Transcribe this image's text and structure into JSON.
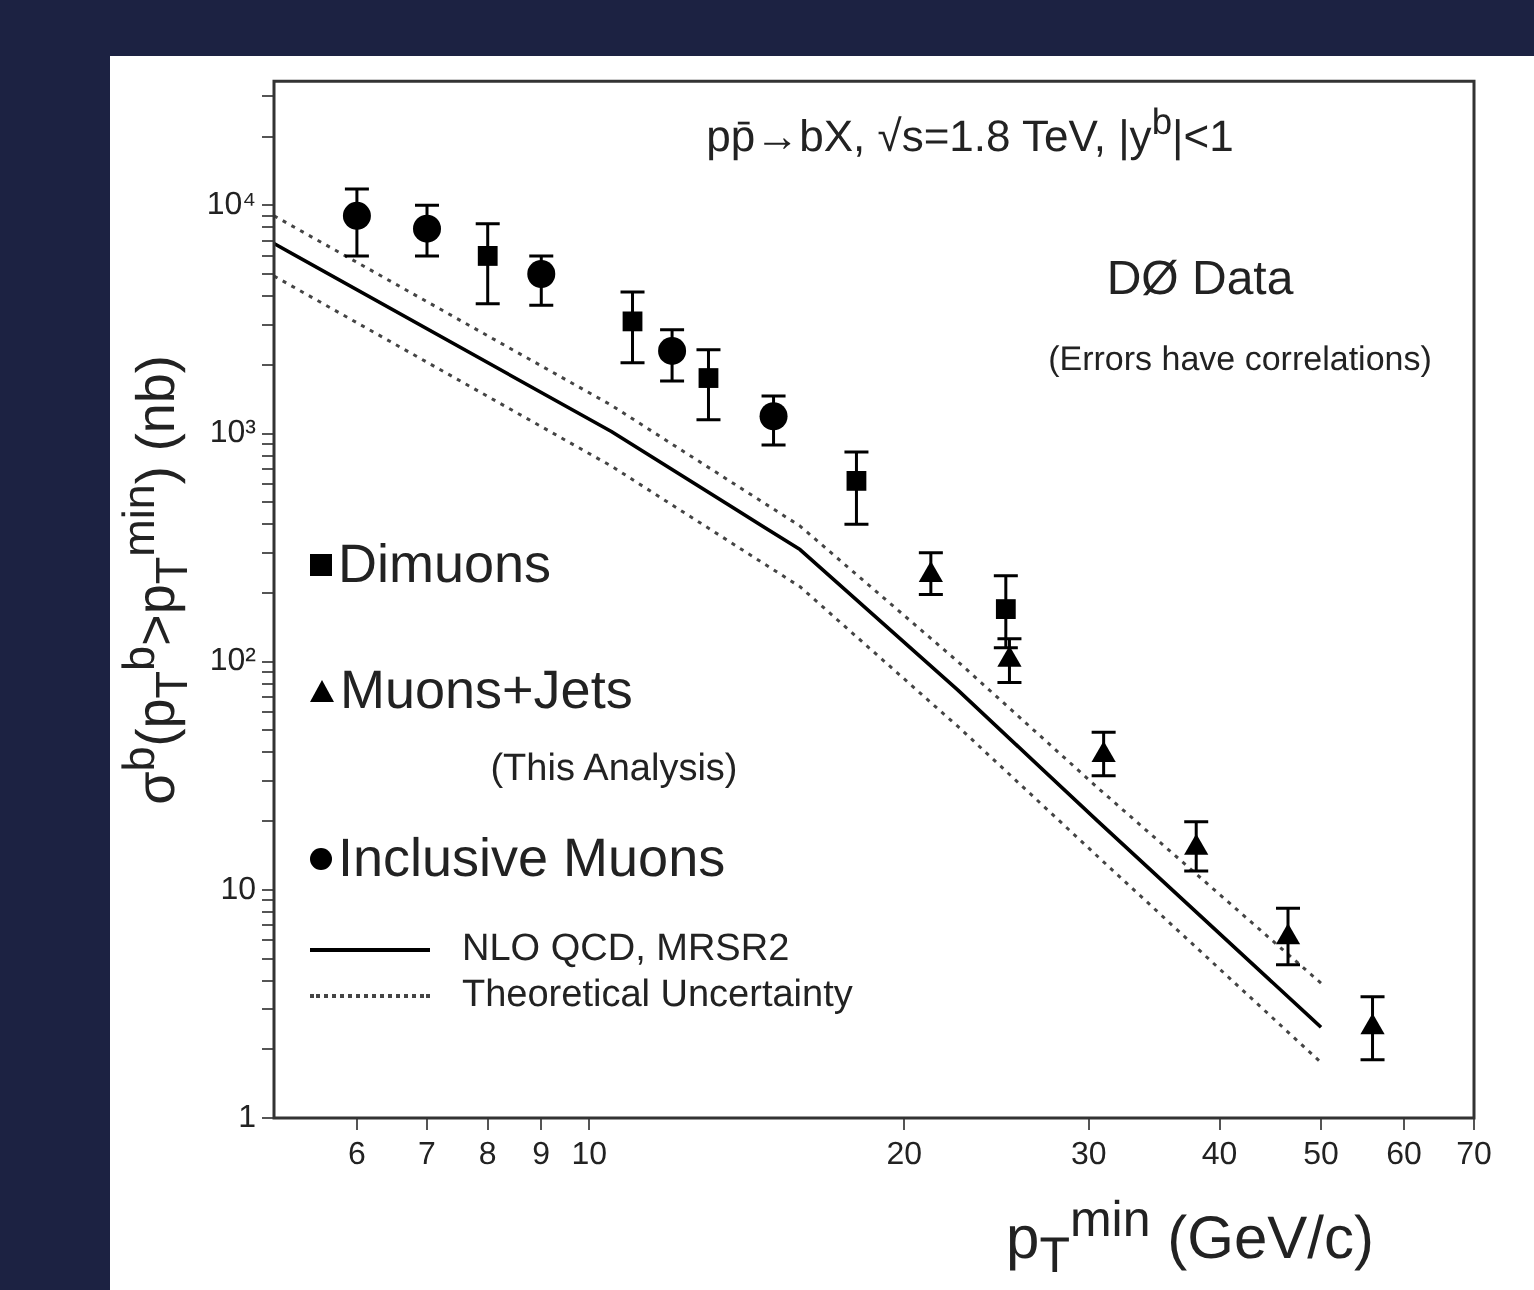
{
  "chart_data": {
    "type": "scatter",
    "title": "pp̄→bX,  √s=1.8 TeV,  |y$^{b}$|<1",
    "xlabel": "p$_{T}$$^{min}$ (GeV/c)",
    "ylabel": "σ$^{b}$(p$_{T}$$^{b}$>p$_{T}$$^{min}$) (nb)",
    "annotations": [
      "DØ Data",
      "(Errors have correlations)",
      "(This Analysis)"
    ],
    "log": "xy",
    "legend": "left",
    "grid": false,
    "xlim": [
      5,
      70
    ],
    "xticks": [
      6,
      7,
      8,
      9,
      10,
      20,
      30,
      40,
      50,
      60,
      70
    ],
    "ylim": [
      1,
      35000
    ],
    "yticks": [
      1,
      {
        "value": 2,
        "label": null
      },
      {
        "value": 3,
        "label": null
      },
      {
        "value": 4,
        "label": null
      },
      {
        "value": 5,
        "label": null
      },
      {
        "value": 6,
        "label": null
      },
      {
        "value": 7,
        "label": null
      },
      {
        "value": 8,
        "label": null
      },
      {
        "value": 9,
        "label": null
      },
      10,
      {
        "value": 20,
        "label": null
      },
      {
        "value": 30,
        "label": null
      },
      {
        "value": 40,
        "label": null
      },
      {
        "value": 50,
        "label": null
      },
      {
        "value": 60,
        "label": null
      },
      {
        "value": 70,
        "label": null
      },
      {
        "value": 80,
        "label": null
      },
      {
        "value": 90,
        "label": null
      },
      {
        "value": 100,
        "label": "10²"
      },
      {
        "value": 200,
        "label": null
      },
      {
        "value": 300,
        "label": null
      },
      {
        "value": 400,
        "label": null
      },
      {
        "value": 500,
        "label": null
      },
      {
        "value": 600,
        "label": null
      },
      {
        "value": 700,
        "label": null
      },
      {
        "value": 800,
        "label": null
      },
      {
        "value": 900,
        "label": null
      },
      {
        "value": 1000,
        "label": "10³"
      },
      {
        "value": 2000,
        "label": null
      },
      {
        "value": 3000,
        "label": null
      },
      {
        "value": 4000,
        "label": null
      },
      {
        "value": 5000,
        "label": null
      },
      {
        "value": 6000,
        "label": null
      },
      {
        "value": 7000,
        "label": null
      },
      {
        "value": 8000,
        "label": null
      },
      {
        "value": 9000,
        "label": null
      },
      {
        "value": 10000,
        "label": "10⁴"
      },
      {
        "value": 20000,
        "label": null
      },
      {
        "value": 30000,
        "label": null
      }
    ],
    "series": [
      {
        "name": "Dimuons",
        "type": "scatter",
        "marker": "square",
        "color": "#000000",
        "x": [
          8,
          11,
          13,
          18,
          25
        ],
        "values": [
          6000,
          3100,
          1750,
          620,
          170
        ],
        "errors": [
          [
            3700,
            8300
          ],
          [
            2040,
            4170
          ],
          [
            1150,
            2330
          ],
          [
            400,
            830
          ],
          [
            115,
            238
          ]
        ]
      },
      {
        "name": "Muons+Jets",
        "type": "scatter",
        "marker": "triangle",
        "color": "#000000",
        "x": [
          21.2,
          25.2,
          31,
          38,
          46.5,
          56
        ],
        "values": [
          240,
          102,
          39,
          15.3,
          6.2,
          2.5
        ],
        "errors": [
          [
            197,
            300
          ],
          [
            81,
            126
          ],
          [
            31.6,
            49
          ],
          [
            12.1,
            19.9
          ],
          [
            4.7,
            8.3
          ],
          [
            1.8,
            3.4
          ]
        ]
      },
      {
        "name": "Inclusive Muons",
        "type": "scatter",
        "marker": "circle",
        "color": "#000000",
        "x": [
          6,
          7,
          9,
          12,
          15
        ],
        "values": [
          9000,
          7900,
          5000,
          2300,
          1190
        ],
        "errors": [
          [
            6000,
            11800
          ],
          [
            6000,
            10000
          ],
          [
            3650,
            6000
          ],
          [
            1700,
            2850
          ],
          [
            890,
            1460
          ]
        ]
      },
      {
        "name": "NLO QCD, MRSR2",
        "type": "line",
        "marker": "none",
        "line_style": "solid",
        "color": "#000000",
        "x": [
          5,
          10.5,
          15.9,
          22.5,
          30.6,
          50
        ],
        "values": [
          6800,
          1020,
          310,
          75,
          20,
          2.5
        ]
      },
      {
        "name": "Theoretical Uncertainty",
        "type": "line",
        "marker": "none",
        "line_style": "dotted",
        "color": "#444444",
        "x": [
          5,
          10.5,
          15.9,
          22.5,
          30.6,
          50
        ],
        "values": [
          9000,
          1330,
          393,
          100,
          28,
          3.9
        ]
      },
      {
        "type": "line",
        "marker": "none",
        "line_style": "dotted",
        "color": "#444444",
        "x": [
          5,
          10.5,
          15.9,
          22.5,
          30.6,
          50
        ],
        "values": [
          4900,
          720,
          213,
          52,
          14,
          1.75
        ]
      }
    ]
  }
}
